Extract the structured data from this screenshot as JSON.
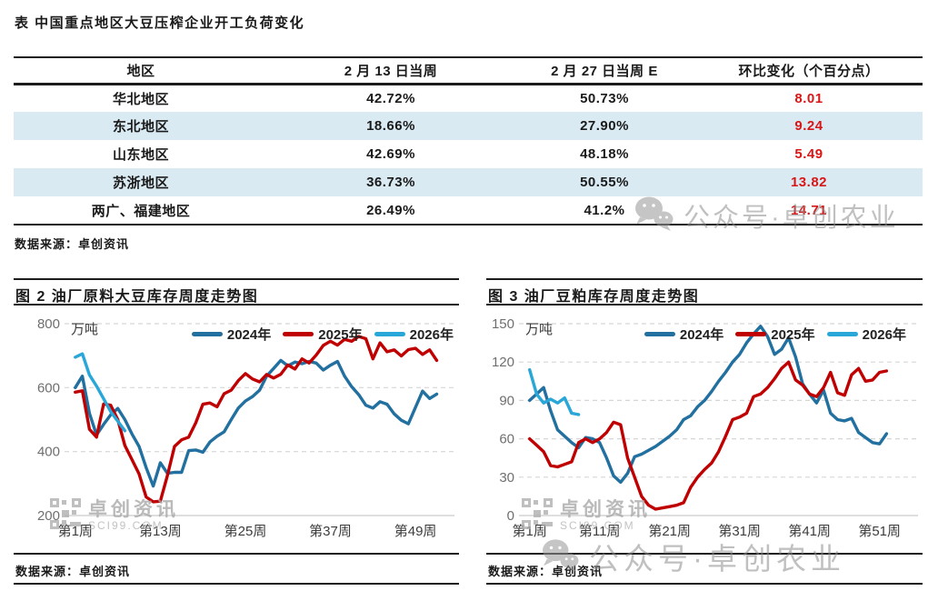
{
  "page": {
    "title": "表  中国重点地区大豆压榨企业开工负荷变化",
    "table_source": "数据来源：卓创资讯"
  },
  "table": {
    "headers": [
      "地区",
      "2 月 13 日当周",
      "2 月 27 日当周 E",
      "环比变化（个百分点）"
    ],
    "rows": [
      {
        "region": "华北地区",
        "week1": "42.72%",
        "week2": "50.73%",
        "change": "8.01"
      },
      {
        "region": "东北地区",
        "week1": "18.66%",
        "week2": "27.90%",
        "change": "9.24"
      },
      {
        "region": "山东地区",
        "week1": "42.69%",
        "week2": "48.18%",
        "change": "5.49"
      },
      {
        "region": "苏浙地区",
        "week1": "36.73%",
        "week2": "50.55%",
        "change": "13.82"
      },
      {
        "region": "两广、福建地区",
        "week1": "26.49%",
        "week2": "41.2%",
        "change": "14.71"
      }
    ],
    "accent_color": "#d91616",
    "stripe_color": "#d9eaf3"
  },
  "panels": [
    {
      "source": "数据来源：卓创资讯"
    },
    {
      "source": "数据来源：卓创资讯"
    }
  ],
  "watermarks": {
    "wechat_label": "公众号·卓创农业",
    "sci_label": "卓创资讯",
    "sci_sub": "SCI99.COM"
  },
  "chart_data": [
    {
      "type": "line",
      "title": "图 2  油厂原料大豆库存周度走势图",
      "unit": "万吨",
      "xlim": [
        0,
        54.5
      ],
      "ylim": [
        200,
        800
      ],
      "y_ticks": [
        800,
        600,
        400,
        200
      ],
      "x_ticks": [
        1,
        13,
        25,
        37,
        49
      ],
      "x_tick_labels": [
        "第1周",
        "第13周",
        "第25周",
        "第37周",
        "第49周"
      ],
      "grid": "dashed-horizontal",
      "legend_position": "top-right",
      "series": [
        {
          "name": "2024年",
          "color": "#21709f",
          "values": [
            600,
            636,
            520,
            452,
            485,
            515,
            535,
            500,
            455,
            416,
            350,
            292,
            365,
            332,
            335,
            335,
            403,
            405,
            398,
            430,
            448,
            462,
            500,
            536,
            558,
            572,
            592,
            636,
            660,
            685,
            668,
            680,
            675,
            682,
            677,
            655,
            670,
            682,
            636,
            603,
            578,
            545,
            536,
            556,
            548,
            518,
            498,
            487,
            538,
            589,
            566,
            580
          ]
        },
        {
          "name": "2025年",
          "color": "#c00000",
          "values": [
            586,
            590,
            470,
            445,
            549,
            545,
            500,
            419,
            375,
            330,
            258,
            243,
            245,
            325,
            416,
            437,
            445,
            490,
            548,
            552,
            540,
            581,
            592,
            622,
            644,
            627,
            618,
            641,
            630,
            642,
            671,
            658,
            690,
            677,
            702,
            732,
            745,
            733,
            751,
            745,
            760,
            753,
            690,
            740,
            712,
            718,
            699,
            719,
            723,
            704,
            718,
            685
          ]
        },
        {
          "name": "2026年",
          "color": "#29a7d9",
          "values": [
            695,
            706,
            640,
            605,
            565,
            525,
            495,
            465
          ]
        }
      ]
    },
    {
      "type": "line",
      "title": "图 3 油厂豆粕库存周度走势图",
      "unit": "万吨",
      "xlim": [
        0,
        56.5
      ],
      "ylim": [
        0,
        150
      ],
      "y_ticks": [
        150,
        120,
        90,
        60,
        30,
        0
      ],
      "x_ticks": [
        1,
        11,
        21,
        31,
        41,
        51
      ],
      "x_tick_labels": [
        "第1周",
        "第11周",
        "第21周",
        "第31周",
        "第41周",
        "第51周"
      ],
      "grid": "dashed-horizontal",
      "legend_position": "top-right",
      "series": [
        {
          "name": "2024年",
          "color": "#21709f",
          "values": [
            90,
            95,
            100,
            82,
            67,
            62,
            57,
            53,
            61,
            60,
            57,
            45,
            31,
            26,
            33,
            46,
            48,
            51,
            54,
            58,
            62,
            67,
            75,
            78,
            85,
            90,
            97,
            105,
            112,
            120,
            126,
            135,
            142,
            148,
            140,
            126,
            130,
            139,
            124,
            103,
            95,
            88,
            98,
            80,
            75,
            74,
            76,
            65,
            61,
            57,
            56,
            64
          ]
        },
        {
          "name": "2025年",
          "color": "#c00000",
          "values": [
            60,
            55,
            50,
            39,
            38,
            40,
            42,
            57,
            60,
            57,
            60,
            65,
            73,
            71,
            45,
            30,
            15,
            8,
            5,
            6,
            7,
            8,
            10,
            22,
            30,
            36,
            41,
            50,
            62,
            75,
            77,
            80,
            93,
            95,
            100,
            107,
            115,
            120,
            106,
            102,
            95,
            93,
            100,
            112,
            96,
            94,
            110,
            115,
            105,
            106,
            112,
            113
          ]
        },
        {
          "name": "2026年",
          "color": "#29a7d9",
          "values": [
            114,
            95,
            88,
            91,
            88,
            92,
            80,
            79
          ]
        }
      ]
    }
  ]
}
